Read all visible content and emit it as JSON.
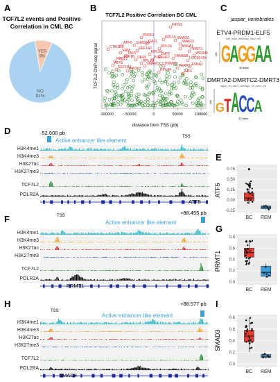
{
  "panelA": {
    "letter": "A",
    "title_line1": "TCF7L2 events and Positive",
    "title_line2": "Correlation in CML BC",
    "chart_data": {
      "type": "pie",
      "categories": [
        "NO",
        "YES"
      ],
      "values": [
        91,
        9
      ],
      "labels": [
        "NO\n91%",
        "YES\n9%"
      ],
      "colors": [
        "#a9d3f0",
        "#f6c8b0"
      ]
    }
  },
  "panelB": {
    "letter": "B",
    "chart_data": {
      "type": "scatter",
      "title": "TCF7L2 Positive Correlation BC CML",
      "xlabel": "distance from TSS (pb)",
      "ylabel": "TCF7L2 ChIP-seq signal",
      "xlim": [
        -110000,
        110000
      ],
      "ylim": [
        0,
        10
      ],
      "xticks": [
        "-100000",
        "-50000",
        "0",
        "50000",
        "100000"
      ],
      "gene_labels": [
        "EIF3G",
        "PRKCI",
        "RPL15",
        "SMAD3",
        "CTAGE5",
        "ATF6",
        "SH2D3A",
        "GA11",
        "RPL34",
        "ASNA1",
        "PRMT1",
        "SRM",
        "EEF1A1",
        "TAF5",
        "RPL34",
        "ZNF9",
        "DERL",
        "PLEKHF2",
        "FAM65B",
        "SMAD3",
        "RPL13",
        "ASF1B",
        "RPL13",
        "ATF5",
        "SMARCC1",
        "PRMT1",
        "EEF1B2",
        "RPL34",
        "PRDX2",
        "FARP2",
        "WDR45",
        "LOC90784",
        "EIF6",
        "ASNA1"
      ]
    }
  },
  "panelC": {
    "letter": "C",
    "header": "jaspar_vertebrates",
    "motif1_title": "ETV4-PRDM1-ELF5",
    "motif1_sub": "6mt_mkv2_mtb4logo_mkv2_m5",
    "motif1_letters": "GAGGAA",
    "motif1_sites": "36 sites",
    "motif2_title": "DMRTA2-DMRTC2-DMRT3",
    "motif2_sub": "oligos_7nt_mkv2_mtb4logo_7nt_mkv2_m4",
    "motif2_letters": "GTACCA",
    "motif2_sites": "22 sites",
    "bits_label": "bits"
  },
  "panelD": {
    "letter": "D",
    "distance": "-52.600 pb",
    "enhancer_label": "Active enhancer like element",
    "tss": "TSS",
    "tracks": [
      "H3K4me1",
      "H3K4me3",
      "H3K27ac",
      "H3K27me3",
      "TCF7L2",
      "POLR2A"
    ],
    "gene": "ATF5"
  },
  "panelE": {
    "letter": "E",
    "chart_data": {
      "type": "box",
      "ylabel": "ATF5",
      "categories": [
        "BC",
        "REM"
      ],
      "yticks": [
        "-0.25",
        "0.00",
        "0.25",
        "0.50",
        "0.75"
      ],
      "ylim": [
        -0.3,
        0.85
      ],
      "boxes": [
        {
          "name": "BC",
          "min": -0.1,
          "q1": -0.02,
          "median": 0.05,
          "q3": 0.17,
          "max": 0.45,
          "outliers": [
            0.74
          ]
        },
        {
          "name": "REM",
          "min": -0.24,
          "q1": -0.21,
          "median": -0.17,
          "q3": -0.14,
          "max": -0.11,
          "outliers": []
        }
      ],
      "colors": [
        "#e8392f",
        "#3a9bd9"
      ]
    }
  },
  "panelF": {
    "letter": "F",
    "distance": "+88.455 pb",
    "enhancer_label": "Active enhancer like element",
    "tss": "TSS",
    "tracks": [
      "H3K4me1",
      "H3K4me3",
      "H3K27ac",
      "H3K27me3",
      "TCF7L2",
      "POLR2A"
    ],
    "gene": "PRMT1"
  },
  "panelG": {
    "letter": "G",
    "chart_data": {
      "type": "box",
      "ylabel": "PRMT1",
      "categories": [
        "BC",
        "REM"
      ],
      "yticks": [
        "0.0",
        "0.2",
        "0.4",
        "0.6",
        "0.8"
      ],
      "ylim": [
        -0.05,
        0.85
      ],
      "boxes": [
        {
          "name": "BC",
          "min": 0.3,
          "q1": 0.44,
          "median": 0.52,
          "q3": 0.6,
          "max": 0.75,
          "outliers": []
        },
        {
          "name": "REM",
          "min": 0.08,
          "q1": 0.1,
          "median": 0.17,
          "q3": 0.28,
          "max": 0.33,
          "outliers": []
        }
      ],
      "colors": [
        "#e8392f",
        "#3a9bd9"
      ]
    }
  },
  "panelH": {
    "letter": "H",
    "distance": "+88.577 pb",
    "enhancer_label": "Active enhancer like element",
    "tss": "TSS",
    "tracks": [
      "H3K4me1",
      "H3K4me3",
      "H3K27ac",
      "H3K27me3",
      "TCF7L2",
      "POL2RA"
    ],
    "gene": "SMAD3"
  },
  "panelI": {
    "letter": "I",
    "chart_data": {
      "type": "box",
      "ylabel": "SMAD3",
      "categories": [
        "BC",
        "REM"
      ],
      "yticks": [
        "0.0",
        "0.2",
        "0.4",
        "0.6",
        "0.8"
      ],
      "ylim": [
        -0.05,
        0.85
      ],
      "boxes": [
        {
          "name": "BC",
          "min": 0.2,
          "q1": 0.38,
          "median": 0.48,
          "q3": 0.58,
          "max": 0.8,
          "outliers": []
        },
        {
          "name": "REM",
          "min": 0.09,
          "q1": 0.11,
          "median": 0.13,
          "q3": 0.16,
          "max": 0.18,
          "outliers": []
        }
      ],
      "colors": [
        "#e8392f",
        "#3a9bd9"
      ]
    }
  },
  "colors": {
    "h3k4me1": "#29b8c8",
    "h3k4me3": "#f0a020",
    "h3k27ac": "#e02020",
    "h3k27me3": "#3050c0",
    "tcf7l2": "#1a8a2a",
    "polr2a": "#000000",
    "gene_track": "#1a2aa0",
    "enhancer": "#3aa0e0",
    "label_red": "#e02020",
    "scatter_green": "#2e8b2e"
  }
}
